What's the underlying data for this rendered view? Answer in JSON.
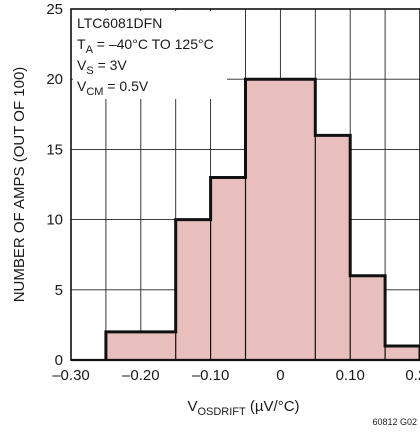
{
  "chart_data": {
    "type": "bar",
    "bins": [
      {
        "from": -0.25,
        "to": -0.15,
        "value": 2
      },
      {
        "from": -0.15,
        "to": -0.1,
        "value": 10
      },
      {
        "from": -0.1,
        "to": -0.05,
        "value": 13
      },
      {
        "from": -0.05,
        "to": 0.05,
        "value": 20
      },
      {
        "from": 0.05,
        "to": 0.1,
        "value": 16
      },
      {
        "from": 0.1,
        "to": 0.15,
        "value": 6
      },
      {
        "from": 0.15,
        "to": 0.2,
        "value": 1
      }
    ],
    "xlim": [
      -0.3,
      0.2
    ],
    "ylim": [
      0,
      25
    ],
    "xticks": [
      {
        "value": -0.3,
        "label": "–0.30"
      },
      {
        "value": -0.2,
        "label": "–0.20"
      },
      {
        "value": -0.1,
        "label": "–0.10"
      },
      {
        "value": 0,
        "label": "0"
      },
      {
        "value": 0.1,
        "label": "0.10"
      },
      {
        "value": 0.2,
        "label": "0.20"
      }
    ],
    "yticks": [
      {
        "value": 0,
        "label": "0"
      },
      {
        "value": 5,
        "label": "5"
      },
      {
        "value": 10,
        "label": "10"
      },
      {
        "value": 15,
        "label": "15"
      },
      {
        "value": 20,
        "label": "20"
      },
      {
        "value": 25,
        "label": "25"
      }
    ],
    "xgrid_values": [
      -0.25,
      -0.2,
      -0.15,
      -0.1,
      -0.05,
      0,
      0.05,
      0.1,
      0.15,
      0.2
    ],
    "ygrid_values": [
      5,
      10,
      15,
      20
    ],
    "xlabel": {
      "main": "V",
      "sub": "OSDRIFT",
      "rest": " (µV/°C)"
    },
    "ylabel": "NUMBER OF AMPS (OUT OF 100)",
    "annotation": [
      {
        "main": "LTC6081DFN",
        "sub": "",
        "rest": ""
      },
      {
        "main": "T",
        "sub": "A",
        "rest": " = –40°C TO 125°C"
      },
      {
        "main": "V",
        "sub": "S",
        "rest": " = 3V"
      },
      {
        "main": "V",
        "sub": "CM",
        "rest": " = 0.5V"
      }
    ],
    "figure_id": "60812 G02",
    "grid": true,
    "colors": {
      "fill": "#e8bfbc",
      "edge": "#111111",
      "grid": "#222222"
    }
  }
}
